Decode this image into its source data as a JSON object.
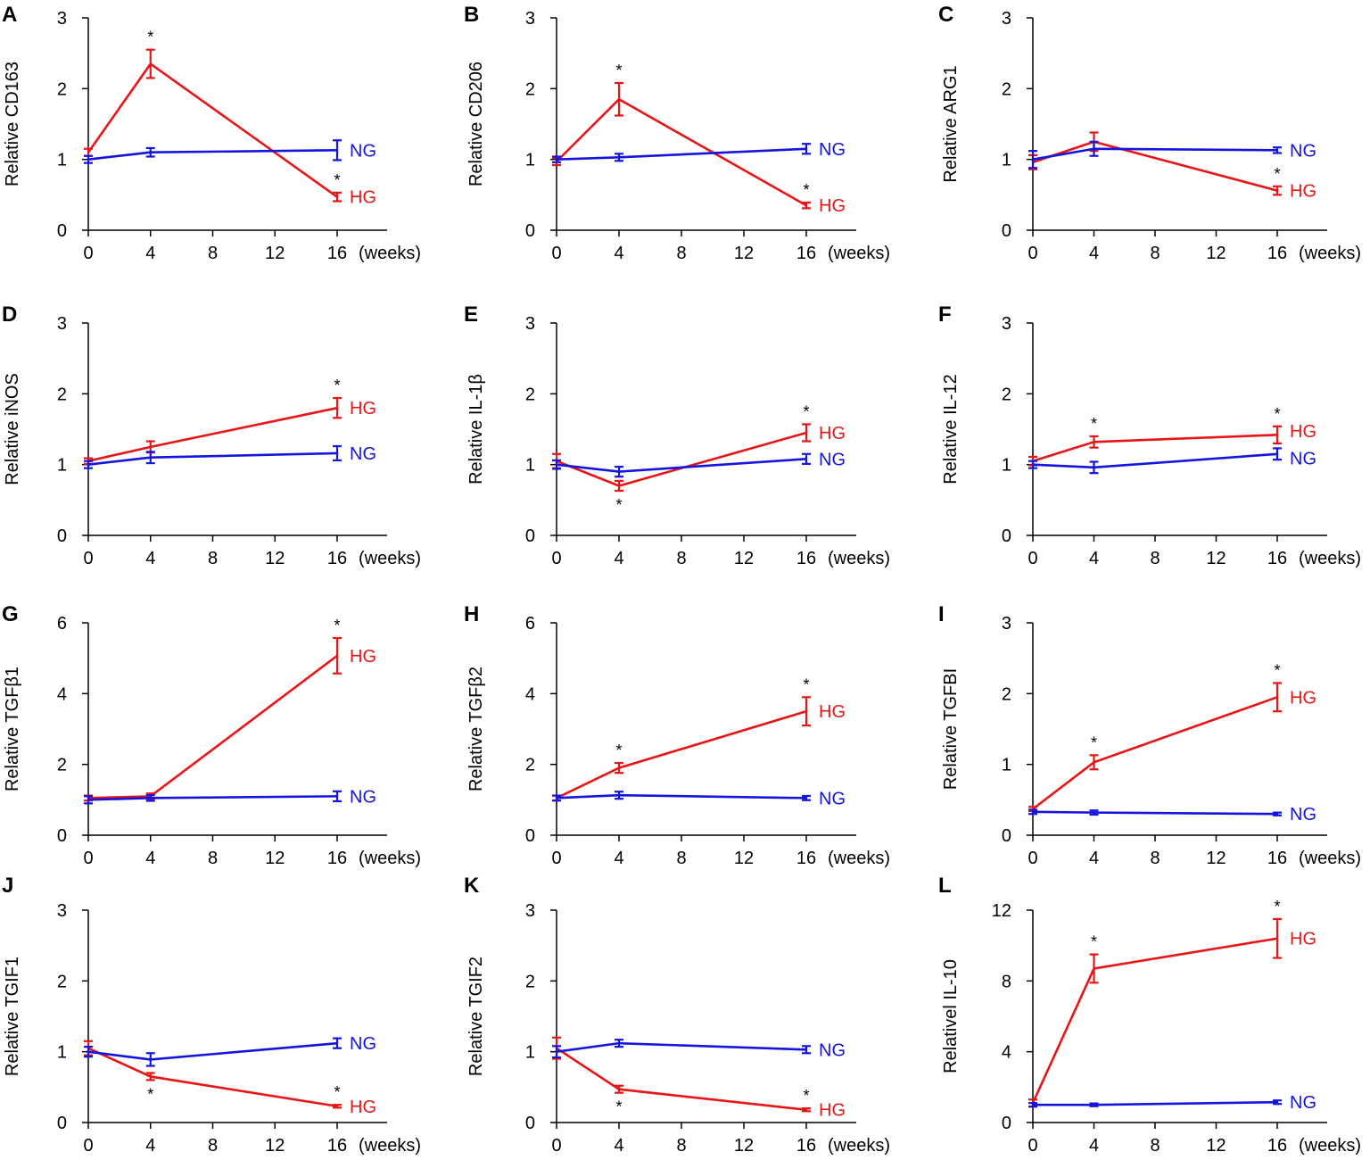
{
  "colors": {
    "HG": "#e81416",
    "NG": "#1414e0",
    "axis": "#000000"
  },
  "chart_data": [
    {
      "type": "line",
      "panel": "A",
      "ylabel": "Relative CD163",
      "x": [
        0,
        4,
        16
      ],
      "xticks": [
        "0",
        "4",
        "8",
        "12",
        "16"
      ],
      "xunit": "(weeks)",
      "ylim": [
        0,
        3
      ],
      "yticks": [
        "0",
        "1",
        "2",
        "3"
      ],
      "series": [
        {
          "name": "HG",
          "values": [
            1.1,
            2.35,
            0.47
          ],
          "errors": [
            0.05,
            0.2,
            0.06
          ],
          "stars": [
            "",
            "above",
            "above"
          ]
        },
        {
          "name": "NG",
          "values": [
            1.0,
            1.1,
            1.13
          ],
          "errors": [
            0.05,
            0.06,
            0.14
          ],
          "stars": [
            "",
            "",
            ""
          ]
        }
      ]
    },
    {
      "type": "line",
      "panel": "B",
      "ylabel": "Relative CD206",
      "x": [
        0,
        4,
        16
      ],
      "xticks": [
        "0",
        "4",
        "8",
        "12",
        "16"
      ],
      "xunit": "(weeks)",
      "ylim": [
        0,
        3
      ],
      "yticks": [
        "0",
        "1",
        "2",
        "3"
      ],
      "series": [
        {
          "name": "HG",
          "values": [
            0.97,
            1.85,
            0.35
          ],
          "errors": [
            0.05,
            0.23,
            0.04
          ],
          "stars": [
            "",
            "above",
            "above"
          ]
        },
        {
          "name": "NG",
          "values": [
            1.0,
            1.03,
            1.15
          ],
          "errors": [
            0.04,
            0.05,
            0.07
          ],
          "stars": [
            "",
            "",
            ""
          ]
        }
      ]
    },
    {
      "type": "line",
      "panel": "C",
      "ylabel": "Relative ARG1",
      "x": [
        0,
        4,
        16
      ],
      "xticks": [
        "0",
        "4",
        "8",
        "12",
        "16"
      ],
      "xunit": "(weeks)",
      "ylim": [
        0,
        3
      ],
      "yticks": [
        "0",
        "1",
        "2",
        "3"
      ],
      "series": [
        {
          "name": "HG",
          "values": [
            0.96,
            1.25,
            0.56
          ],
          "errors": [
            0.1,
            0.13,
            0.06
          ],
          "stars": [
            "",
            "",
            "above"
          ]
        },
        {
          "name": "NG",
          "values": [
            1.0,
            1.15,
            1.13
          ],
          "errors": [
            0.12,
            0.1,
            0.04
          ],
          "stars": [
            "",
            "",
            ""
          ]
        }
      ]
    },
    {
      "type": "line",
      "panel": "D",
      "ylabel": "Relative iNOS",
      "x": [
        0,
        4,
        16
      ],
      "xticks": [
        "0",
        "4",
        "8",
        "12",
        "16"
      ],
      "xunit": "(weeks)",
      "ylim": [
        0,
        3
      ],
      "yticks": [
        "0",
        "1",
        "2",
        "3"
      ],
      "series": [
        {
          "name": "HG",
          "values": [
            1.05,
            1.25,
            1.8
          ],
          "errors": [
            0.04,
            0.08,
            0.14
          ],
          "stars": [
            "",
            "",
            "above"
          ]
        },
        {
          "name": "NG",
          "values": [
            1.0,
            1.1,
            1.16
          ],
          "errors": [
            0.05,
            0.08,
            0.1
          ],
          "stars": [
            "",
            "",
            ""
          ]
        }
      ]
    },
    {
      "type": "line",
      "panel": "E",
      "ylabel": "Relative IL-1β",
      "x": [
        0,
        4,
        16
      ],
      "xticks": [
        "0",
        "4",
        "8",
        "12",
        "16"
      ],
      "xunit": "(weeks)",
      "ylim": [
        0,
        3
      ],
      "yticks": [
        "0",
        "1",
        "2",
        "3"
      ],
      "series": [
        {
          "name": "HG",
          "values": [
            1.05,
            0.7,
            1.45
          ],
          "errors": [
            0.1,
            0.07,
            0.12
          ],
          "stars": [
            "",
            "below",
            "above"
          ]
        },
        {
          "name": "NG",
          "values": [
            1.0,
            0.9,
            1.08
          ],
          "errors": [
            0.06,
            0.07,
            0.07
          ],
          "stars": [
            "",
            "",
            ""
          ]
        }
      ]
    },
    {
      "type": "line",
      "panel": "F",
      "ylabel": "Relative IL-12",
      "x": [
        0,
        4,
        16
      ],
      "xticks": [
        "0",
        "4",
        "8",
        "12",
        "16"
      ],
      "xunit": "(weeks)",
      "ylim": [
        0,
        3
      ],
      "yticks": [
        "0",
        "1",
        "2",
        "3"
      ],
      "series": [
        {
          "name": "HG",
          "values": [
            1.05,
            1.32,
            1.42
          ],
          "errors": [
            0.06,
            0.08,
            0.12
          ],
          "stars": [
            "",
            "above",
            "above"
          ]
        },
        {
          "name": "NG",
          "values": [
            1.0,
            0.96,
            1.15
          ],
          "errors": [
            0.05,
            0.08,
            0.08
          ],
          "stars": [
            "",
            "",
            ""
          ]
        }
      ]
    },
    {
      "type": "line",
      "panel": "G",
      "ylabel": "Relative TGFβ1",
      "x": [
        0,
        4,
        16
      ],
      "xticks": [
        "0",
        "4",
        "8",
        "12",
        "16"
      ],
      "xunit": "(weeks)",
      "ylim": [
        0,
        6
      ],
      "yticks": [
        "0",
        "2",
        "4",
        "6"
      ],
      "series": [
        {
          "name": "HG",
          "values": [
            1.05,
            1.1,
            5.07
          ],
          "errors": [
            0.07,
            0.08,
            0.5
          ],
          "stars": [
            "",
            "",
            "above"
          ]
        },
        {
          "name": "NG",
          "values": [
            1.0,
            1.05,
            1.1
          ],
          "errors": [
            0.1,
            0.08,
            0.14
          ],
          "stars": [
            "",
            "",
            ""
          ]
        }
      ]
    },
    {
      "type": "line",
      "panel": "H",
      "ylabel": "Relative TGFβ2",
      "x": [
        0,
        4,
        16
      ],
      "xticks": [
        "0",
        "4",
        "8",
        "12",
        "16"
      ],
      "xunit": "(weeks)",
      "ylim": [
        0,
        6
      ],
      "yticks": [
        "0",
        "2",
        "4",
        "6"
      ],
      "series": [
        {
          "name": "HG",
          "values": [
            1.05,
            1.9,
            3.5
          ],
          "errors": [
            0.07,
            0.14,
            0.4
          ],
          "stars": [
            "",
            "above",
            "above"
          ]
        },
        {
          "name": "NG",
          "values": [
            1.05,
            1.13,
            1.05
          ],
          "errors": [
            0.07,
            0.1,
            0.06
          ],
          "stars": [
            "",
            "",
            ""
          ]
        }
      ]
    },
    {
      "type": "line",
      "panel": "I",
      "ylabel": "Relative TGFBI",
      "x": [
        0,
        4,
        16
      ],
      "xticks": [
        "0",
        "4",
        "8",
        "12",
        "16"
      ],
      "xunit": "(weeks)",
      "ylim": [
        0,
        3
      ],
      "yticks": [
        "0",
        "1",
        "2",
        "3"
      ],
      "series": [
        {
          "name": "HG",
          "values": [
            0.37,
            1.03,
            1.95
          ],
          "errors": [
            0.03,
            0.1,
            0.2
          ],
          "stars": [
            "",
            "above",
            "above"
          ]
        },
        {
          "name": "NG",
          "values": [
            0.33,
            0.32,
            0.3
          ],
          "errors": [
            0.03,
            0.03,
            0.02
          ],
          "stars": [
            "",
            "",
            ""
          ]
        }
      ]
    },
    {
      "type": "line",
      "panel": "J",
      "ylabel": "Relative TGIF1",
      "x": [
        0,
        4,
        16
      ],
      "xticks": [
        "0",
        "4",
        "8",
        "12",
        "16"
      ],
      "xunit": "(weeks)",
      "ylim": [
        0,
        3
      ],
      "yticks": [
        "0",
        "1",
        "2",
        "3"
      ],
      "series": [
        {
          "name": "HG",
          "values": [
            1.05,
            0.65,
            0.23
          ],
          "errors": [
            0.1,
            0.05,
            0.02
          ],
          "stars": [
            "",
            "below",
            "above"
          ]
        },
        {
          "name": "NG",
          "values": [
            1.0,
            0.89,
            1.12
          ],
          "errors": [
            0.07,
            0.09,
            0.07
          ],
          "stars": [
            "",
            "",
            ""
          ]
        }
      ]
    },
    {
      "type": "line",
      "panel": "K",
      "ylabel": "Relative TGIF2",
      "x": [
        0,
        4,
        16
      ],
      "xticks": [
        "0",
        "4",
        "8",
        "12",
        "16"
      ],
      "xunit": "(weeks)",
      "ylim": [
        0,
        3
      ],
      "yticks": [
        "0",
        "1",
        "2",
        "3"
      ],
      "series": [
        {
          "name": "HG",
          "values": [
            1.05,
            0.47,
            0.18
          ],
          "errors": [
            0.15,
            0.05,
            0.02
          ],
          "stars": [
            "",
            "below",
            "above"
          ]
        },
        {
          "name": "NG",
          "values": [
            1.0,
            1.12,
            1.03
          ],
          "errors": [
            0.08,
            0.05,
            0.05
          ],
          "stars": [
            "",
            "",
            ""
          ]
        }
      ]
    },
    {
      "type": "line",
      "panel": "L",
      "ylabel": "Relativel IL-10",
      "x": [
        0,
        4,
        16
      ],
      "xticks": [
        "0",
        "4",
        "8",
        "12",
        "16"
      ],
      "xunit": "(weeks)",
      "ylim": [
        0,
        12
      ],
      "yticks": [
        "0",
        "4",
        "8",
        "12"
      ],
      "series": [
        {
          "name": "HG",
          "values": [
            1.1,
            8.7,
            10.4
          ],
          "errors": [
            0.2,
            0.8,
            1.1
          ],
          "stars": [
            "",
            "above",
            "above"
          ]
        },
        {
          "name": "NG",
          "values": [
            1.0,
            1.0,
            1.15
          ],
          "errors": [
            0.1,
            0.08,
            0.1
          ],
          "stars": [
            "",
            "",
            ""
          ]
        }
      ]
    }
  ]
}
